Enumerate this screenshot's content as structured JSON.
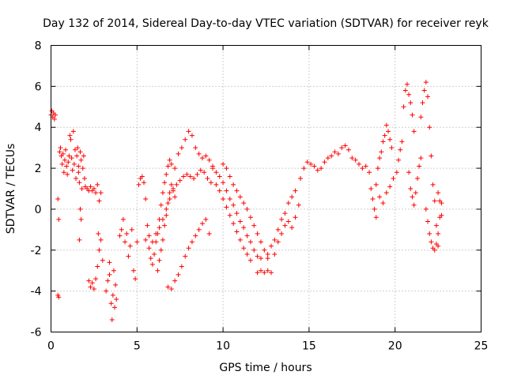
{
  "chart_data": {
    "type": "scatter",
    "title": "Day 132 of 2014, Sidereal Day-to-day VTEC variation (SDTVAR) for receiver reyk",
    "xlabel": "GPS time / hours",
    "ylabel": "SDTVAR / TECUs",
    "xlim": [
      0,
      25
    ],
    "ylim": [
      -6,
      8
    ],
    "xticks": [
      0,
      5,
      10,
      15,
      20,
      25
    ],
    "yticks": [
      -6,
      -4,
      -2,
      0,
      2,
      4,
      6,
      8
    ],
    "grid": true,
    "marker": "+",
    "series": [
      {
        "name": "reyk",
        "color": "#ff0000",
        "points": [
          [
            0.0,
            4.6
          ],
          [
            0.05,
            4.8
          ],
          [
            0.1,
            4.5
          ],
          [
            0.15,
            4.7
          ],
          [
            0.2,
            4.4
          ],
          [
            0.25,
            4.6
          ],
          [
            0.4,
            -4.2
          ],
          [
            0.45,
            -4.3
          ],
          [
            0.4,
            0.5
          ],
          [
            0.45,
            -0.5
          ],
          [
            0.5,
            2.8
          ],
          [
            0.55,
            3.0
          ],
          [
            0.6,
            2.6
          ],
          [
            0.65,
            2.2
          ],
          [
            0.7,
            2.7
          ],
          [
            0.75,
            1.8
          ],
          [
            0.8,
            2.4
          ],
          [
            0.85,
            2.9
          ],
          [
            0.9,
            2.1
          ],
          [
            0.95,
            1.7
          ],
          [
            1.0,
            2.3
          ],
          [
            1.05,
            2.6
          ],
          [
            1.1,
            3.6
          ],
          [
            1.15,
            3.4
          ],
          [
            1.2,
            2.5
          ],
          [
            1.25,
            1.9
          ],
          [
            1.3,
            3.8
          ],
          [
            1.35,
            2.2
          ],
          [
            1.4,
            2.9
          ],
          [
            1.45,
            1.5
          ],
          [
            1.5,
            2.6
          ],
          [
            1.55,
            3.0
          ],
          [
            1.6,
            2.1
          ],
          [
            1.65,
            1.3
          ],
          [
            1.7,
            2.8
          ],
          [
            1.75,
            2.4
          ],
          [
            1.8,
            1.0
          ],
          [
            1.85,
            2.0
          ],
          [
            1.9,
            2.6
          ],
          [
            1.95,
            1.5
          ],
          [
            1.7,
            0.0
          ],
          [
            1.65,
            -1.5
          ],
          [
            1.75,
            -0.5
          ],
          [
            1.6,
            1.8
          ],
          [
            2.0,
            1.1
          ],
          [
            2.1,
            1.0
          ],
          [
            2.2,
            0.9
          ],
          [
            2.3,
            1.1
          ],
          [
            2.4,
            0.9
          ],
          [
            2.5,
            1.0
          ],
          [
            2.6,
            0.8
          ],
          [
            2.7,
            1.2
          ],
          [
            2.8,
            0.4
          ],
          [
            2.9,
            0.8
          ],
          [
            2.2,
            -3.5
          ],
          [
            2.3,
            -3.8
          ],
          [
            2.4,
            -3.6
          ],
          [
            2.5,
            -3.9
          ],
          [
            2.6,
            -3.4
          ],
          [
            2.7,
            -2.8
          ],
          [
            2.8,
            -2.0
          ],
          [
            2.9,
            -1.5
          ],
          [
            3.0,
            -2.5
          ],
          [
            2.75,
            -1.2
          ],
          [
            3.2,
            -4.0
          ],
          [
            3.3,
            -3.5
          ],
          [
            3.4,
            -3.2
          ],
          [
            3.5,
            -4.6
          ],
          [
            3.55,
            -5.4
          ],
          [
            3.6,
            -4.2
          ],
          [
            3.65,
            -3.0
          ],
          [
            3.7,
            -4.8
          ],
          [
            3.75,
            -3.7
          ],
          [
            3.8,
            -4.4
          ],
          [
            3.4,
            -2.6
          ],
          [
            4.0,
            -1.3
          ],
          [
            4.1,
            -1.0
          ],
          [
            4.2,
            -0.5
          ],
          [
            4.3,
            -1.6
          ],
          [
            4.4,
            -1.2
          ],
          [
            4.5,
            -2.3
          ],
          [
            4.6,
            -1.8
          ],
          [
            4.7,
            -1.0
          ],
          [
            4.8,
            -3.0
          ],
          [
            4.9,
            -3.4
          ],
          [
            5.0,
            -1.6
          ],
          [
            5.1,
            1.2
          ],
          [
            5.2,
            1.5
          ],
          [
            5.3,
            1.6
          ],
          [
            5.4,
            1.3
          ],
          [
            5.5,
            0.5
          ],
          [
            5.6,
            -0.8
          ],
          [
            5.7,
            -1.9
          ],
          [
            5.8,
            -2.4
          ],
          [
            5.9,
            -2.7
          ],
          [
            6.0,
            -2.2
          ],
          [
            6.1,
            -1.6
          ],
          [
            6.2,
            -1.2
          ],
          [
            6.3,
            -0.5
          ],
          [
            6.4,
            0.2
          ],
          [
            6.5,
            0.8
          ],
          [
            6.6,
            1.3
          ],
          [
            6.7,
            1.7
          ],
          [
            6.8,
            2.1
          ],
          [
            6.9,
            2.4
          ],
          [
            7.0,
            2.2
          ],
          [
            5.5,
            -1.5
          ],
          [
            5.7,
            -1.3
          ],
          [
            5.9,
            -1.6
          ],
          [
            6.1,
            -1.2
          ],
          [
            6.3,
            -0.9
          ],
          [
            6.5,
            -0.5
          ],
          [
            6.7,
            0.0
          ],
          [
            6.9,
            0.5
          ],
          [
            7.1,
            0.9
          ],
          [
            7.3,
            1.2
          ],
          [
            7.5,
            1.4
          ],
          [
            7.7,
            1.6
          ],
          [
            7.9,
            1.7
          ],
          [
            8.1,
            1.6
          ],
          [
            8.3,
            1.5
          ],
          [
            8.5,
            1.7
          ],
          [
            8.7,
            1.9
          ],
          [
            8.9,
            1.8
          ],
          [
            9.1,
            1.5
          ],
          [
            9.3,
            1.3
          ],
          [
            6.2,
            -3.0
          ],
          [
            6.3,
            -2.5
          ],
          [
            6.4,
            -2.0
          ],
          [
            6.5,
            -1.5
          ],
          [
            6.6,
            -0.8
          ],
          [
            6.7,
            -0.3
          ],
          [
            6.8,
            0.3
          ],
          [
            6.9,
            0.8
          ],
          [
            7.0,
            1.2
          ],
          [
            7.1,
            1.0
          ],
          [
            7.2,
            0.6
          ],
          [
            7.2,
            2.0
          ],
          [
            7.4,
            2.7
          ],
          [
            7.6,
            3.0
          ],
          [
            7.8,
            3.4
          ],
          [
            8.0,
            3.8
          ],
          [
            8.2,
            3.6
          ],
          [
            8.4,
            3.0
          ],
          [
            8.6,
            2.7
          ],
          [
            8.8,
            2.5
          ],
          [
            9.0,
            2.6
          ],
          [
            9.2,
            2.4
          ],
          [
            9.4,
            2.1
          ],
          [
            6.8,
            -3.8
          ],
          [
            7.0,
            -3.9
          ],
          [
            7.2,
            -3.5
          ],
          [
            7.4,
            -3.2
          ],
          [
            7.6,
            -2.8
          ],
          [
            7.8,
            -2.3
          ],
          [
            8.0,
            -1.9
          ],
          [
            8.2,
            -1.6
          ],
          [
            8.4,
            -1.3
          ],
          [
            8.6,
            -1.0
          ],
          [
            8.8,
            -0.7
          ],
          [
            9.0,
            -0.5
          ],
          [
            9.2,
            -1.2
          ],
          [
            9.4,
            2.0
          ],
          [
            9.6,
            1.8
          ],
          [
            9.8,
            1.6
          ],
          [
            10.0,
            1.3
          ],
          [
            10.2,
            0.9
          ],
          [
            10.4,
            0.5
          ],
          [
            10.6,
            0.2
          ],
          [
            10.8,
            -0.2
          ],
          [
            11.0,
            -0.6
          ],
          [
            11.2,
            -0.9
          ],
          [
            11.4,
            -1.3
          ],
          [
            11.6,
            -1.6
          ],
          [
            11.8,
            -2.0
          ],
          [
            12.0,
            -2.3
          ],
          [
            12.2,
            -2.4
          ],
          [
            9.6,
            1.2
          ],
          [
            9.8,
            0.9
          ],
          [
            10.0,
            0.5
          ],
          [
            10.2,
            0.1
          ],
          [
            10.4,
            -0.3
          ],
          [
            10.6,
            -0.7
          ],
          [
            10.8,
            -1.1
          ],
          [
            11.0,
            -1.5
          ],
          [
            11.2,
            -1.9
          ],
          [
            11.4,
            -2.2
          ],
          [
            11.6,
            -2.5
          ],
          [
            10.0,
            2.2
          ],
          [
            10.2,
            2.0
          ],
          [
            10.4,
            1.6
          ],
          [
            10.6,
            1.2
          ],
          [
            10.8,
            0.9
          ],
          [
            11.0,
            0.6
          ],
          [
            11.2,
            0.3
          ],
          [
            11.4,
            0.0
          ],
          [
            11.6,
            -0.4
          ],
          [
            11.8,
            -0.8
          ],
          [
            12.0,
            -1.2
          ],
          [
            12.2,
            -1.6
          ],
          [
            12.4,
            -2.0
          ],
          [
            12.6,
            -2.2
          ],
          [
            12.0,
            -3.1
          ],
          [
            12.2,
            -3.0
          ],
          [
            12.4,
            -3.1
          ],
          [
            12.6,
            -3.0
          ],
          [
            12.8,
            -3.1
          ],
          [
            12.6,
            -2.4
          ],
          [
            12.8,
            -1.8
          ],
          [
            13.0,
            -1.5
          ],
          [
            13.2,
            -1.0
          ],
          [
            13.4,
            -0.5
          ],
          [
            13.6,
            -0.2
          ],
          [
            13.8,
            0.3
          ],
          [
            14.0,
            0.6
          ],
          [
            14.2,
            0.9
          ],
          [
            13.0,
            -2.2
          ],
          [
            13.2,
            -1.6
          ],
          [
            13.4,
            -1.2
          ],
          [
            13.6,
            -0.8
          ],
          [
            13.8,
            -0.6
          ],
          [
            14.0,
            -0.9
          ],
          [
            14.2,
            -0.4
          ],
          [
            14.4,
            0.2
          ],
          [
            14.5,
            1.5
          ],
          [
            14.7,
            2.0
          ],
          [
            14.9,
            2.3
          ],
          [
            15.1,
            2.2
          ],
          [
            15.3,
            2.1
          ],
          [
            15.5,
            1.9
          ],
          [
            15.7,
            2.0
          ],
          [
            15.9,
            2.3
          ],
          [
            16.1,
            2.5
          ],
          [
            16.3,
            2.6
          ],
          [
            16.5,
            2.8
          ],
          [
            16.7,
            2.7
          ],
          [
            16.9,
            3.0
          ],
          [
            17.1,
            3.1
          ],
          [
            17.3,
            2.9
          ],
          [
            17.5,
            2.5
          ],
          [
            17.7,
            2.4
          ],
          [
            17.9,
            2.2
          ],
          [
            18.1,
            2.0
          ],
          [
            18.3,
            2.1
          ],
          [
            18.5,
            1.8
          ],
          [
            18.6,
            1.0
          ],
          [
            18.7,
            0.5
          ],
          [
            18.8,
            0.0
          ],
          [
            18.9,
            1.2
          ],
          [
            19.0,
            2.0
          ],
          [
            19.1,
            2.5
          ],
          [
            19.2,
            2.8
          ],
          [
            19.3,
            3.3
          ],
          [
            19.4,
            3.6
          ],
          [
            19.5,
            4.1
          ],
          [
            19.6,
            3.8
          ],
          [
            19.7,
            3.4
          ],
          [
            19.8,
            3.0
          ],
          [
            18.9,
            -0.4
          ],
          [
            19.1,
            0.6
          ],
          [
            19.3,
            0.3
          ],
          [
            19.5,
            0.8
          ],
          [
            19.7,
            1.1
          ],
          [
            19.9,
            1.5
          ],
          [
            20.1,
            1.8
          ],
          [
            20.2,
            2.4
          ],
          [
            20.3,
            2.9
          ],
          [
            20.4,
            3.3
          ],
          [
            20.5,
            5.0
          ],
          [
            20.6,
            5.8
          ],
          [
            20.7,
            6.1
          ],
          [
            20.8,
            5.6
          ],
          [
            20.9,
            5.2
          ],
          [
            21.0,
            4.6
          ],
          [
            21.1,
            3.8
          ],
          [
            20.8,
            1.8
          ],
          [
            20.9,
            1.0
          ],
          [
            21.0,
            0.6
          ],
          [
            21.1,
            0.2
          ],
          [
            21.2,
            0.8
          ],
          [
            21.3,
            1.5
          ],
          [
            21.4,
            2.1
          ],
          [
            21.5,
            2.5
          ],
          [
            21.5,
            4.5
          ],
          [
            21.6,
            5.2
          ],
          [
            21.7,
            5.8
          ],
          [
            21.8,
            6.2
          ],
          [
            21.9,
            5.5
          ],
          [
            22.0,
            4.0
          ],
          [
            22.1,
            2.6
          ],
          [
            22.2,
            1.2
          ],
          [
            22.3,
            0.4
          ],
          [
            22.4,
            -0.8
          ],
          [
            21.8,
            0.0
          ],
          [
            21.9,
            -0.6
          ],
          [
            22.0,
            -1.2
          ],
          [
            22.1,
            -1.6
          ],
          [
            22.2,
            -1.9
          ],
          [
            22.3,
            -2.0
          ],
          [
            22.4,
            -1.7
          ],
          [
            22.5,
            -1.2
          ],
          [
            22.6,
            -0.4
          ],
          [
            22.7,
            0.3
          ],
          [
            22.5,
            0.8
          ],
          [
            22.6,
            0.4
          ],
          [
            22.7,
            -0.3
          ],
          [
            22.5,
            -1.8
          ]
        ]
      }
    ]
  }
}
